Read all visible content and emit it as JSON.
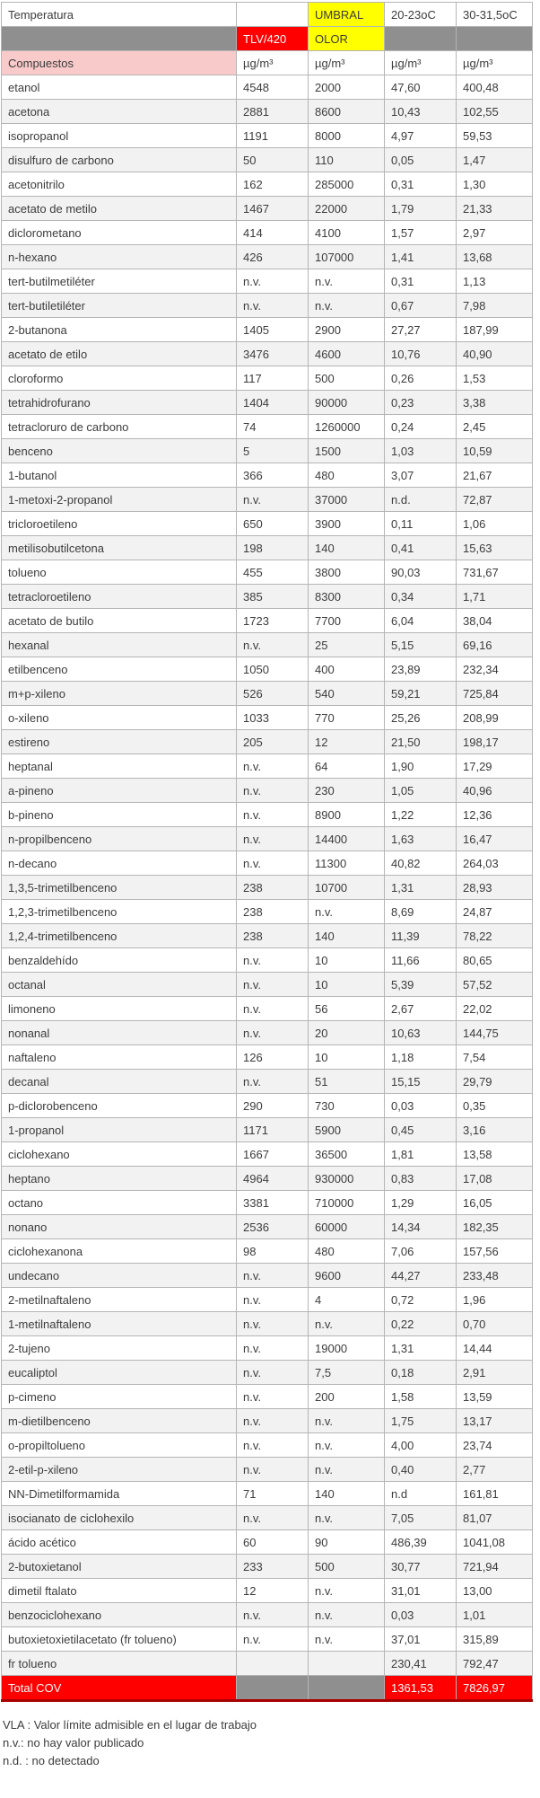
{
  "table": {
    "header": {
      "temperatura": "Temperatura",
      "umbral": "UMBRAL",
      "temp_low": "20-23oC",
      "temp_high": "30-31,5oC",
      "tlv": "TLV/420",
      "olor": "OLOR",
      "compuestos": "Compuestos",
      "unit": "µg/m³"
    },
    "rows": [
      [
        "etanol",
        "4548",
        "2000",
        "47,60",
        "400,48"
      ],
      [
        "acetona",
        "2881",
        "8600",
        "10,43",
        "102,55"
      ],
      [
        "isopropanol",
        "1191",
        "8000",
        "4,97",
        "59,53"
      ],
      [
        "disulfuro de carbono",
        "50",
        "110",
        "0,05",
        "1,47"
      ],
      [
        "acetonitrilo",
        "162",
        "285000",
        "0,31",
        "1,30"
      ],
      [
        "acetato de metilo",
        "1467",
        "22000",
        "1,79",
        "21,33"
      ],
      [
        "diclorometano",
        "414",
        "4100",
        "1,57",
        "2,97"
      ],
      [
        "n-hexano",
        "426",
        "107000",
        "1,41",
        "13,68"
      ],
      [
        "tert-butilmetiléter",
        "n.v.",
        "n.v.",
        "0,31",
        "1,13"
      ],
      [
        "tert-butiletiléter",
        "n.v.",
        "n.v.",
        "0,67",
        "7,98"
      ],
      [
        "2-butanona",
        "1405",
        "2900",
        "27,27",
        "187,99"
      ],
      [
        "acetato de etilo",
        "3476",
        "4600",
        "10,76",
        "40,90"
      ],
      [
        "cloroformo",
        "117",
        "500",
        "0,26",
        "1,53"
      ],
      [
        "tetrahidrofurano",
        "1404",
        "90000",
        "0,23",
        "3,38"
      ],
      [
        "tetracloruro de carbono",
        "74",
        "1260000",
        "0,24",
        "2,45"
      ],
      [
        "benceno",
        "5",
        "1500",
        "1,03",
        "10,59"
      ],
      [
        "1-butanol",
        "366",
        "480",
        "3,07",
        "21,67"
      ],
      [
        "1-metoxi-2-propanol",
        "n.v.",
        "37000",
        "n.d.",
        "72,87"
      ],
      [
        "tricloroetileno",
        "650",
        "3900",
        "0,11",
        "1,06"
      ],
      [
        "metilisobutilcetona",
        "198",
        "140",
        "0,41",
        "15,63"
      ],
      [
        "tolueno",
        "455",
        "3800",
        "90,03",
        "731,67"
      ],
      [
        "tetracloroetileno",
        "385",
        "8300",
        "0,34",
        "1,71"
      ],
      [
        "acetato de butilo",
        "1723",
        "7700",
        "6,04",
        "38,04"
      ],
      [
        "hexanal",
        "n.v.",
        "25",
        "5,15",
        "69,16"
      ],
      [
        "etilbenceno",
        "1050",
        "400",
        "23,89",
        "232,34"
      ],
      [
        "m+p-xileno",
        "526",
        "540",
        "59,21",
        "725,84"
      ],
      [
        "o-xileno",
        "1033",
        "770",
        "25,26",
        "208,99"
      ],
      [
        "estireno",
        "205",
        "12",
        "21,50",
        "198,17"
      ],
      [
        "heptanal",
        "n.v.",
        "64",
        "1,90",
        "17,29"
      ],
      [
        "a-pineno",
        "n.v.",
        "230",
        "1,05",
        "40,96"
      ],
      [
        "b-pineno",
        "n.v.",
        "8900",
        "1,22",
        "12,36"
      ],
      [
        "n-propilbenceno",
        "n.v.",
        "14400",
        "1,63",
        "16,47"
      ],
      [
        "n-decano",
        "n.v.",
        "11300",
        "40,82",
        "264,03"
      ],
      [
        "1,3,5-trimetilbenceno",
        "238",
        "10700",
        "1,31",
        "28,93"
      ],
      [
        "1,2,3-trimetilbenceno",
        "238",
        "n.v.",
        "8,69",
        "24,87"
      ],
      [
        "1,2,4-trimetilbenceno",
        "238",
        "140",
        "11,39",
        "78,22"
      ],
      [
        "benzaldehído",
        "n.v.",
        "10",
        "11,66",
        "80,65"
      ],
      [
        "octanal",
        "n.v.",
        "10",
        "5,39",
        "57,52"
      ],
      [
        "limoneno",
        "n.v.",
        "56",
        "2,67",
        "22,02"
      ],
      [
        "nonanal",
        "n.v.",
        "20",
        "10,63",
        "144,75"
      ],
      [
        "naftaleno",
        "126",
        "10",
        "1,18",
        "7,54"
      ],
      [
        "decanal",
        "n.v.",
        "51",
        "15,15",
        "29,79"
      ],
      [
        "p-diclorobenceno",
        "290",
        "730",
        "0,03",
        "0,35"
      ],
      [
        "1-propanol",
        "1171",
        "5900",
        "0,45",
        "3,16"
      ],
      [
        "ciclohexano",
        "1667",
        "36500",
        "1,81",
        "13,58"
      ],
      [
        "heptano",
        "4964",
        "930000",
        "0,83",
        "17,08"
      ],
      [
        "octano",
        "3381",
        "710000",
        "1,29",
        "16,05"
      ],
      [
        "nonano",
        "2536",
        "60000",
        "14,34",
        "182,35"
      ],
      [
        "ciclohexanona",
        "98",
        "480",
        "7,06",
        "157,56"
      ],
      [
        "undecano",
        "n.v.",
        "9600",
        "44,27",
        "233,48"
      ],
      [
        "2-metilnaftaleno",
        "n.v.",
        "4",
        "0,72",
        "1,96"
      ],
      [
        "1-metilnaftaleno",
        "n.v.",
        "n.v.",
        "0,22",
        "0,70"
      ],
      [
        "2-tujeno",
        "n.v.",
        "19000",
        "1,31",
        "14,44"
      ],
      [
        "eucaliptol",
        "n.v.",
        "7,5",
        "0,18",
        "2,91"
      ],
      [
        "p-cimeno",
        "n.v.",
        "200",
        "1,58",
        "13,59"
      ],
      [
        "m-dietilbenceno",
        "n.v.",
        "n.v.",
        "1,75",
        "13,17"
      ],
      [
        "o-propiltolueno",
        "n.v.",
        "n.v.",
        "4,00",
        "23,74"
      ],
      [
        "2-etil-p-xileno",
        "n.v.",
        "n.v.",
        "0,40",
        "2,77"
      ],
      [
        "NN-Dimetilformamida",
        "71",
        "140",
        "n.d",
        "161,81"
      ],
      [
        "isocianato de ciclohexilo",
        "n.v.",
        "n.v.",
        "7,05",
        "81,07"
      ],
      [
        "ácido acético",
        "60",
        "90",
        "486,39",
        "1041,08"
      ],
      [
        "2-butoxietanol",
        "233",
        "500",
        "30,77",
        "721,94"
      ],
      [
        "dimetil ftalato",
        "12",
        "n.v.",
        "31,01",
        "13,00"
      ],
      [
        "benzociclohexano",
        "n.v.",
        "n.v.",
        "0,03",
        "1,01"
      ],
      [
        "butoxietoxietilacetato (fr tolueno)",
        "n.v.",
        "n.v.",
        "37,01",
        "315,89"
      ],
      [
        "fr tolueno",
        "",
        "",
        "230,41",
        "792,47"
      ]
    ],
    "total": {
      "label": "Total COV",
      "t20": "1361,53",
      "t30": "7826,97"
    }
  },
  "footnotes": [
    "VLA : Valor límite admisible en el lugar de trabajo",
    "n.v.: no hay valor publicado",
    "n.d. : no detectado"
  ],
  "colors": {
    "accent_red": "#fe0000",
    "dark_red_border": "#a80000",
    "accent_yellow": "#ffff00",
    "header_gray": "#8f8f8f",
    "compuestos_pink": "#f8caca",
    "stripe_gray": "#f2f2f2"
  }
}
